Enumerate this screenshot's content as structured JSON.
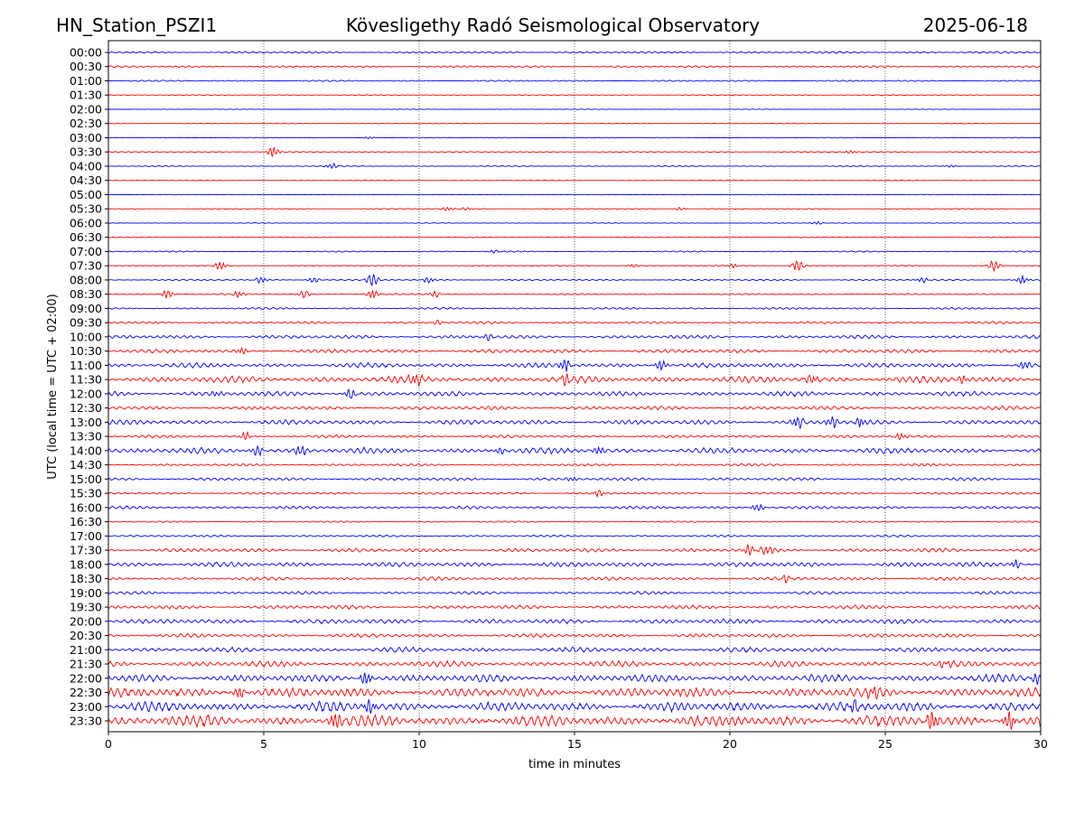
{
  "header": {
    "station": "HN_Station_PSZI1",
    "observatory": "Kövesligethy Radó Seismological Observatory",
    "date": "2025-06-18"
  },
  "chart_data": {
    "type": "line",
    "title": "Kövesligethy Radó Seismological Observatory",
    "xlabel": "time in minutes",
    "ylabel": "UTC (local time = UTC + 02:00)",
    "xlim": [
      0,
      30
    ],
    "xticks": [
      "0",
      "5",
      "10",
      "15",
      "20",
      "25",
      "30"
    ],
    "grid": "vertical dotted at 5-minute intervals",
    "colors": [
      "#0000ff",
      "#ff0000"
    ],
    "rows": [
      {
        "label": "00:00",
        "noise": 1.0,
        "events": []
      },
      {
        "label": "00:30",
        "noise": 1.0,
        "events": []
      },
      {
        "label": "01:00",
        "noise": 0.7,
        "events": []
      },
      {
        "label": "01:30",
        "noise": 0.4,
        "events": []
      },
      {
        "label": "02:00",
        "noise": 0.3,
        "events": []
      },
      {
        "label": "02:30",
        "noise": 0.3,
        "events": []
      },
      {
        "label": "03:00",
        "noise": 0.4,
        "events": [
          [
            8.4,
            1.2
          ]
        ]
      },
      {
        "label": "03:30",
        "noise": 0.5,
        "events": [
          [
            5.3,
            5
          ],
          [
            23.9,
            1.5
          ]
        ]
      },
      {
        "label": "04:00",
        "noise": 0.5,
        "events": [
          [
            7.2,
            2.5
          ],
          [
            27.1,
            1.2
          ]
        ]
      },
      {
        "label": "04:30",
        "noise": 0.3,
        "events": []
      },
      {
        "label": "05:00",
        "noise": 0.3,
        "events": []
      },
      {
        "label": "05:30",
        "noise": 0.4,
        "events": [
          [
            10.9,
            2
          ],
          [
            11.5,
            1.5
          ],
          [
            18.4,
            1.5
          ]
        ]
      },
      {
        "label": "06:00",
        "noise": 0.4,
        "events": [
          [
            22.8,
            1.5
          ]
        ]
      },
      {
        "label": "06:30",
        "noise": 0.4,
        "events": []
      },
      {
        "label": "07:00",
        "noise": 0.6,
        "events": [
          [
            12.4,
            1.5
          ]
        ]
      },
      {
        "label": "07:30",
        "noise": 0.6,
        "events": [
          [
            3.6,
            4
          ],
          [
            22.2,
            6
          ],
          [
            28.5,
            5
          ],
          [
            16.9,
            1.5
          ],
          [
            20.1,
            2
          ]
        ]
      },
      {
        "label": "08:00",
        "noise": 0.8,
        "events": [
          [
            4.9,
            3
          ],
          [
            6.6,
            3
          ],
          [
            8.5,
            7
          ],
          [
            10.3,
            3
          ],
          [
            26.2,
            3
          ],
          [
            29.4,
            4
          ]
        ]
      },
      {
        "label": "08:30",
        "noise": 0.8,
        "events": [
          [
            1.9,
            4
          ],
          [
            4.2,
            3
          ],
          [
            6.3,
            4
          ],
          [
            8.5,
            4
          ],
          [
            10.5,
            3
          ]
        ]
      },
      {
        "label": "09:00",
        "noise": 1.0,
        "events": []
      },
      {
        "label": "09:30",
        "noise": 1.2,
        "events": [
          [
            10.6,
            2
          ]
        ]
      },
      {
        "label": "10:00",
        "noise": 1.8,
        "events": [
          [
            12.2,
            3
          ]
        ]
      },
      {
        "label": "10:30",
        "noise": 2.0,
        "events": [
          [
            4.3,
            3
          ]
        ]
      },
      {
        "label": "11:00",
        "noise": 2.5,
        "events": [
          [
            14.7,
            6
          ],
          [
            17.8,
            5
          ],
          [
            29.5,
            4
          ]
        ]
      },
      {
        "label": "11:30",
        "noise": 3.5,
        "events": [
          [
            9.9,
            6
          ],
          [
            14.7,
            5
          ],
          [
            22.6,
            5
          ],
          [
            27.5,
            4
          ]
        ]
      },
      {
        "label": "12:00",
        "noise": 2.5,
        "events": [
          [
            7.8,
            5
          ],
          [
            3.5,
            3
          ]
        ]
      },
      {
        "label": "12:30",
        "noise": 2.0,
        "events": []
      },
      {
        "label": "13:00",
        "noise": 2.5,
        "events": [
          [
            22.2,
            6
          ],
          [
            23.3,
            6
          ],
          [
            24.2,
            4
          ]
        ]
      },
      {
        "label": "13:30",
        "noise": 1.5,
        "events": [
          [
            4.4,
            4
          ],
          [
            25.5,
            3
          ]
        ]
      },
      {
        "label": "14:00",
        "noise": 3.0,
        "events": [
          [
            4.8,
            6
          ],
          [
            6.2,
            5
          ],
          [
            15.8,
            4
          ],
          [
            12.6,
            3
          ]
        ]
      },
      {
        "label": "14:30",
        "noise": 1.2,
        "events": []
      },
      {
        "label": "15:00",
        "noise": 1.5,
        "events": [
          [
            14.9,
            2
          ]
        ]
      },
      {
        "label": "15:30",
        "noise": 1.2,
        "events": [
          [
            15.8,
            3
          ]
        ]
      },
      {
        "label": "16:00",
        "noise": 1.5,
        "events": [
          [
            20.9,
            4
          ]
        ]
      },
      {
        "label": "16:30",
        "noise": 0.8,
        "events": []
      },
      {
        "label": "17:00",
        "noise": 1.0,
        "events": []
      },
      {
        "label": "17:30",
        "noise": 2.0,
        "events": [
          [
            20.6,
            5
          ],
          [
            21.2,
            5
          ]
        ]
      },
      {
        "label": "18:00",
        "noise": 2.5,
        "events": [
          [
            29.2,
            4
          ]
        ]
      },
      {
        "label": "18:30",
        "noise": 1.8,
        "events": [
          [
            21.8,
            3
          ]
        ]
      },
      {
        "label": "19:00",
        "noise": 1.5,
        "events": []
      },
      {
        "label": "19:30",
        "noise": 2.0,
        "events": []
      },
      {
        "label": "20:00",
        "noise": 2.5,
        "events": []
      },
      {
        "label": "20:30",
        "noise": 2.0,
        "events": []
      },
      {
        "label": "21:00",
        "noise": 2.5,
        "events": []
      },
      {
        "label": "21:30",
        "noise": 3.0,
        "events": [
          [
            26.9,
            4
          ]
        ]
      },
      {
        "label": "22:00",
        "noise": 4.0,
        "events": [
          [
            8.3,
            6
          ],
          [
            29.9,
            6
          ]
        ]
      },
      {
        "label": "22:30",
        "noise": 5.0,
        "events": [
          [
            4.2,
            6
          ],
          [
            24.6,
            6
          ]
        ]
      },
      {
        "label": "23:00",
        "noise": 5.0,
        "events": [
          [
            8.4,
            7
          ],
          [
            24.0,
            5
          ]
        ]
      },
      {
        "label": "23:30",
        "noise": 6.0,
        "events": [
          [
            7.3,
            8
          ],
          [
            26.5,
            8
          ],
          [
            29.0,
            8
          ]
        ]
      }
    ]
  }
}
